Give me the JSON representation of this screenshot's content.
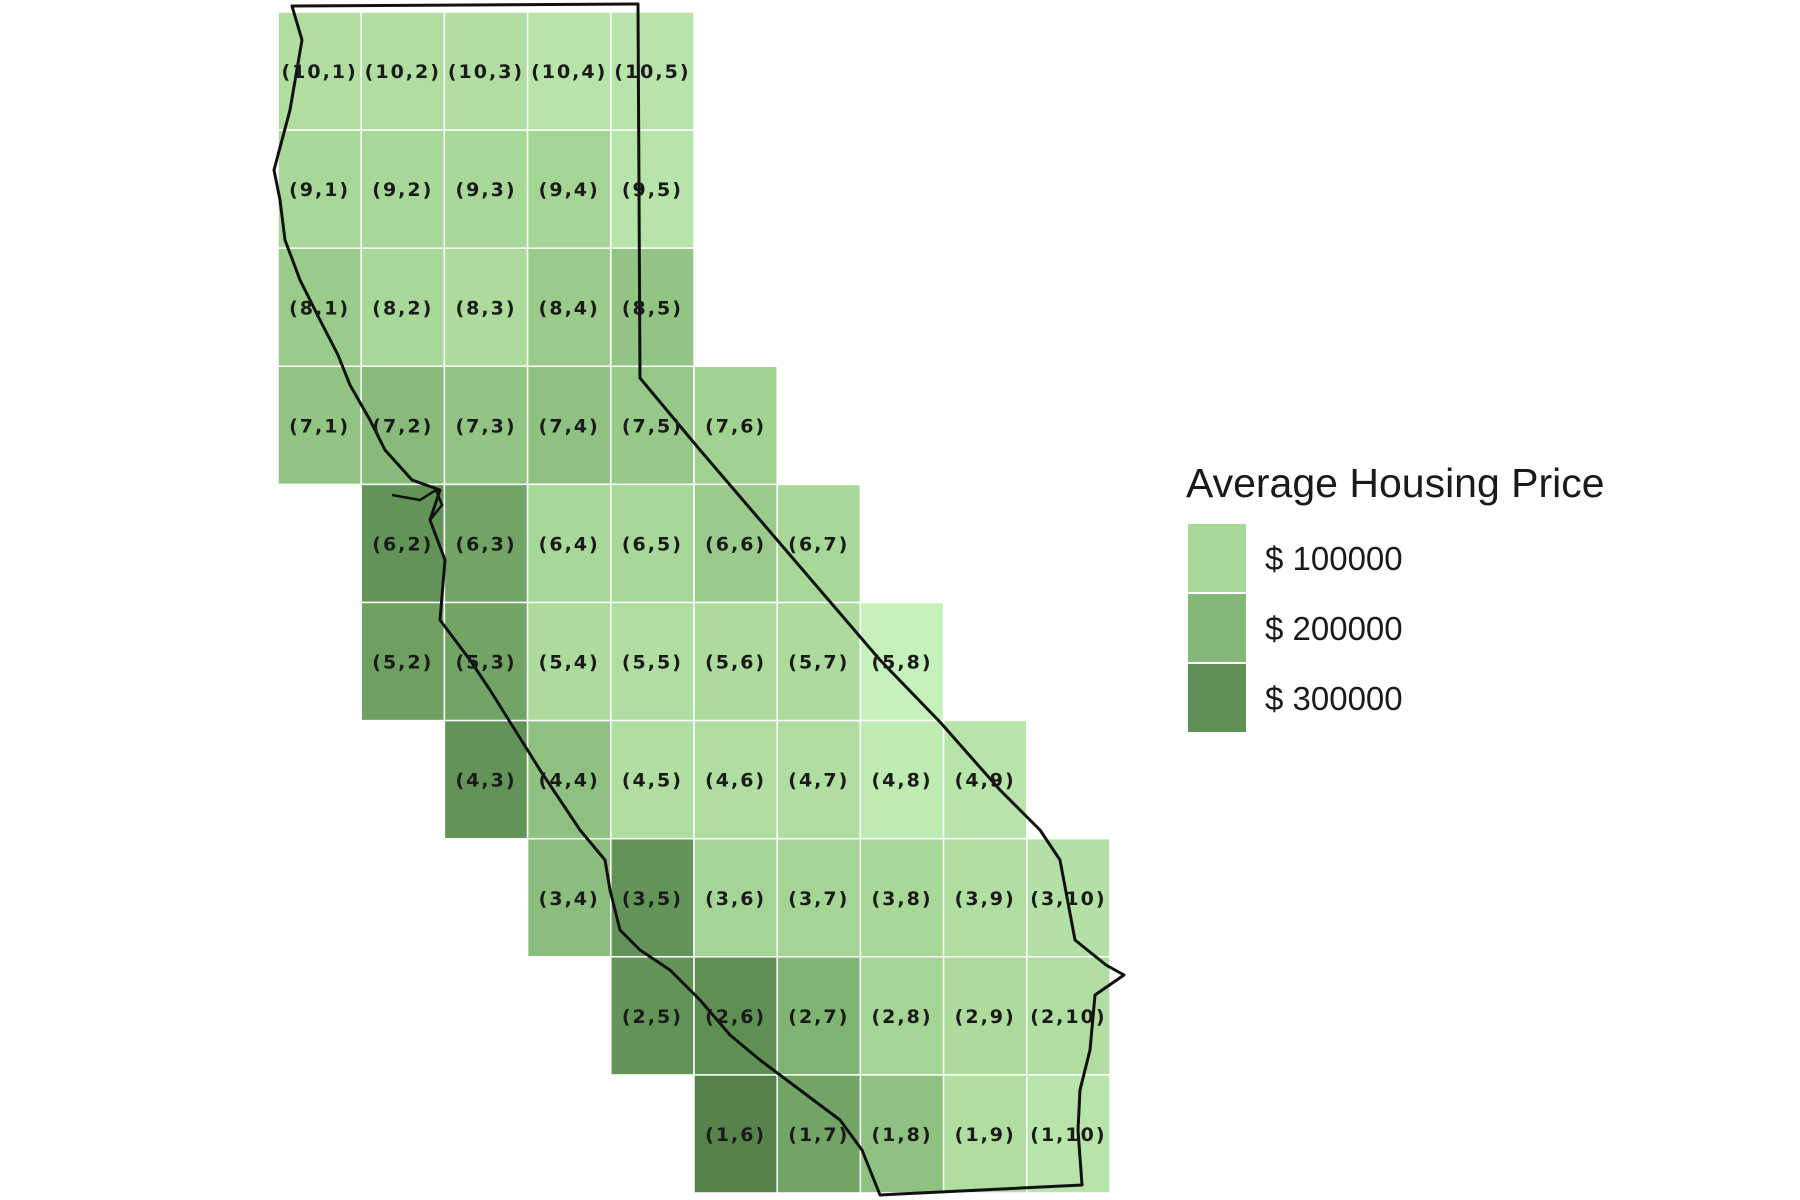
{
  "legend": {
    "title": "Average Housing Price",
    "entries": [
      {
        "label": "$ 100000",
        "color": "#a8d898"
      },
      {
        "label": "$ 200000",
        "color": "#84b876"
      },
      {
        "label": "$ 300000",
        "color": "#5f9053"
      }
    ]
  },
  "grid": {
    "cells": [
      {
        "row": 10,
        "col": 1,
        "label": "(10,1)",
        "level": 0.8
      },
      {
        "row": 10,
        "col": 2,
        "label": "(10,2)",
        "level": 0.8
      },
      {
        "row": 10,
        "col": 3,
        "label": "(10,3)",
        "level": 0.8
      },
      {
        "row": 10,
        "col": 4,
        "label": "(10,4)",
        "level": 0.6
      },
      {
        "row": 10,
        "col": 5,
        "label": "(10,5)",
        "level": 0.6
      },
      {
        "row": 9,
        "col": 1,
        "label": "(9,1)",
        "level": 1.0
      },
      {
        "row": 9,
        "col": 2,
        "label": "(9,2)",
        "level": 1.0
      },
      {
        "row": 9,
        "col": 3,
        "label": "(9,3)",
        "level": 1.0
      },
      {
        "row": 9,
        "col": 4,
        "label": "(9,4)",
        "level": 1.1
      },
      {
        "row": 9,
        "col": 5,
        "label": "(9,5)",
        "level": 0.6
      },
      {
        "row": 8,
        "col": 1,
        "label": "(8,1)",
        "level": 1.4
      },
      {
        "row": 8,
        "col": 2,
        "label": "(8,2)",
        "level": 1.0
      },
      {
        "row": 8,
        "col": 3,
        "label": "(8,3)",
        "level": 0.9
      },
      {
        "row": 8,
        "col": 4,
        "label": "(8,4)",
        "level": 1.4
      },
      {
        "row": 8,
        "col": 5,
        "label": "(8,5)",
        "level": 1.6
      },
      {
        "row": 7,
        "col": 1,
        "label": "(7,1)",
        "level": 1.6
      },
      {
        "row": 7,
        "col": 2,
        "label": "(7,2)",
        "level": 1.9
      },
      {
        "row": 7,
        "col": 3,
        "label": "(7,3)",
        "level": 1.6
      },
      {
        "row": 7,
        "col": 4,
        "label": "(7,4)",
        "level": 1.7
      },
      {
        "row": 7,
        "col": 5,
        "label": "(7,5)",
        "level": 1.5
      },
      {
        "row": 7,
        "col": 6,
        "label": "(7,6)",
        "level": 1.2
      },
      {
        "row": 6,
        "col": 2,
        "label": "(6,2)",
        "level": 2.9
      },
      {
        "row": 6,
        "col": 3,
        "label": "(6,3)",
        "level": 2.5
      },
      {
        "row": 6,
        "col": 4,
        "label": "(6,4)",
        "level": 1.0
      },
      {
        "row": 6,
        "col": 5,
        "label": "(6,5)",
        "level": 1.0
      },
      {
        "row": 6,
        "col": 6,
        "label": "(6,6)",
        "level": 1.4
      },
      {
        "row": 6,
        "col": 7,
        "label": "(6,7)",
        "level": 1.0
      },
      {
        "row": 5,
        "col": 2,
        "label": "(5,2)",
        "level": 2.6
      },
      {
        "row": 5,
        "col": 3,
        "label": "(5,3)",
        "level": 2.5
      },
      {
        "row": 5,
        "col": 4,
        "label": "(5,4)",
        "level": 0.9
      },
      {
        "row": 5,
        "col": 5,
        "label": "(5,5)",
        "level": 0.8
      },
      {
        "row": 5,
        "col": 6,
        "label": "(5,6)",
        "level": 0.9
      },
      {
        "row": 5,
        "col": 7,
        "label": "(5,7)",
        "level": 0.9
      },
      {
        "row": 5,
        "col": 8,
        "label": "(5,8)",
        "level": 0.2
      },
      {
        "row": 4,
        "col": 3,
        "label": "(4,3)",
        "level": 2.9
      },
      {
        "row": 4,
        "col": 4,
        "label": "(4,4)",
        "level": 1.7
      },
      {
        "row": 4,
        "col": 5,
        "label": "(4,5)",
        "level": 0.8
      },
      {
        "row": 4,
        "col": 6,
        "label": "(4,6)",
        "level": 0.8
      },
      {
        "row": 4,
        "col": 7,
        "label": "(4,7)",
        "level": 0.8
      },
      {
        "row": 4,
        "col": 8,
        "label": "(4,8)",
        "level": 0.4
      },
      {
        "row": 4,
        "col": 9,
        "label": "(4,9)",
        "level": 0.6
      },
      {
        "row": 3,
        "col": 4,
        "label": "(3,4)",
        "level": 1.8
      },
      {
        "row": 3,
        "col": 5,
        "label": "(3,5)",
        "level": 2.9
      },
      {
        "row": 3,
        "col": 6,
        "label": "(3,6)",
        "level": 1.1
      },
      {
        "row": 3,
        "col": 7,
        "label": "(3,7)",
        "level": 1.1
      },
      {
        "row": 3,
        "col": 8,
        "label": "(3,8)",
        "level": 1.0
      },
      {
        "row": 3,
        "col": 9,
        "label": "(3,9)",
        "level": 0.8
      },
      {
        "row": 3,
        "col": 10,
        "label": "(3,10)",
        "level": 0.7
      },
      {
        "row": 2,
        "col": 5,
        "label": "(2,5)",
        "level": 2.9
      },
      {
        "row": 2,
        "col": 6,
        "label": "(2,6)",
        "level": 3.0
      },
      {
        "row": 2,
        "col": 7,
        "label": "(2,7)",
        "level": 2.1
      },
      {
        "row": 2,
        "col": 8,
        "label": "(2,8)",
        "level": 1.1
      },
      {
        "row": 2,
        "col": 9,
        "label": "(2,9)",
        "level": 0.9
      },
      {
        "row": 2,
        "col": 10,
        "label": "(2,10)",
        "level": 0.8
      },
      {
        "row": 1,
        "col": 6,
        "label": "(1,6)",
        "level": 3.3
      },
      {
        "row": 1,
        "col": 7,
        "label": "(1,7)",
        "level": 2.5
      },
      {
        "row": 1,
        "col": 8,
        "label": "(1,8)",
        "level": 1.7
      },
      {
        "row": 1,
        "col": 9,
        "label": "(1,9)",
        "level": 0.8
      },
      {
        "row": 1,
        "col": 10,
        "label": "(1,10)",
        "level": 0.6
      }
    ]
  }
}
